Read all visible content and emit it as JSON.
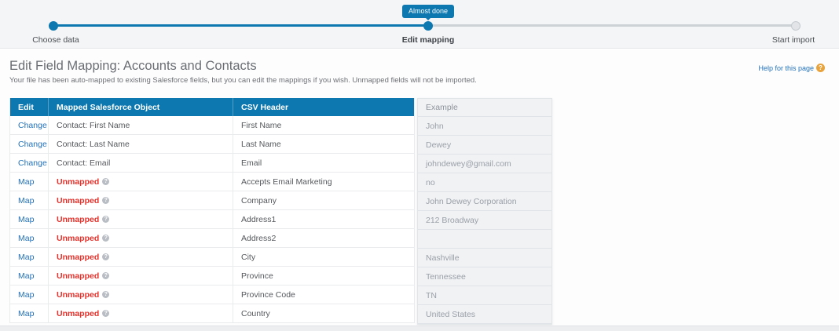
{
  "stepper": {
    "badge": "Almost done",
    "steps": [
      {
        "label": "Choose data",
        "state": "done"
      },
      {
        "label": "Edit mapping",
        "state": "current"
      },
      {
        "label": "Start import",
        "state": "upcoming"
      }
    ]
  },
  "header": {
    "title": "Edit Field Mapping: Accounts and Contacts",
    "subtitle": "Your file has been auto-mapped to existing Salesforce fields, but you can edit the mappings if you wish. Unmapped fields will not be imported.",
    "help_link": "Help for this page",
    "help_icon_glyph": "?"
  },
  "table": {
    "columns": [
      "Edit",
      "Mapped Salesforce Object",
      "CSV Header"
    ],
    "example_column": "Example",
    "unmapped_label": "Unmapped",
    "info_icon_glyph": "?",
    "rows": [
      {
        "action": "Change",
        "mapped": "Contact: First Name",
        "unmapped": false,
        "csv": "First Name",
        "example": "John"
      },
      {
        "action": "Change",
        "mapped": "Contact: Last Name",
        "unmapped": false,
        "csv": "Last Name",
        "example": "Dewey"
      },
      {
        "action": "Change",
        "mapped": "Contact: Email",
        "unmapped": false,
        "csv": "Email",
        "example": "johndewey@gmail.com"
      },
      {
        "action": "Map",
        "mapped": "Unmapped",
        "unmapped": true,
        "csv": "Accepts Email Marketing",
        "example": "no"
      },
      {
        "action": "Map",
        "mapped": "Unmapped",
        "unmapped": true,
        "csv": "Company",
        "example": "John Dewey Corporation"
      },
      {
        "action": "Map",
        "mapped": "Unmapped",
        "unmapped": true,
        "csv": "Address1",
        "example": "212 Broadway"
      },
      {
        "action": "Map",
        "mapped": "Unmapped",
        "unmapped": true,
        "csv": "Address2",
        "example": ""
      },
      {
        "action": "Map",
        "mapped": "Unmapped",
        "unmapped": true,
        "csv": "City",
        "example": "Nashville"
      },
      {
        "action": "Map",
        "mapped": "Unmapped",
        "unmapped": true,
        "csv": "Province",
        "example": "Tennessee"
      },
      {
        "action": "Map",
        "mapped": "Unmapped",
        "unmapped": true,
        "csv": "Province Code",
        "example": "TN"
      },
      {
        "action": "Map",
        "mapped": "Unmapped",
        "unmapped": true,
        "csv": "Country",
        "example": "United States"
      }
    ]
  },
  "colors": {
    "accent_blue": "#0d78af",
    "link_blue": "#2272b9",
    "unmapped_red": "#e5302a",
    "help_icon_orange": "#e8a33d",
    "example_text_gray": "#9aa0a8"
  }
}
